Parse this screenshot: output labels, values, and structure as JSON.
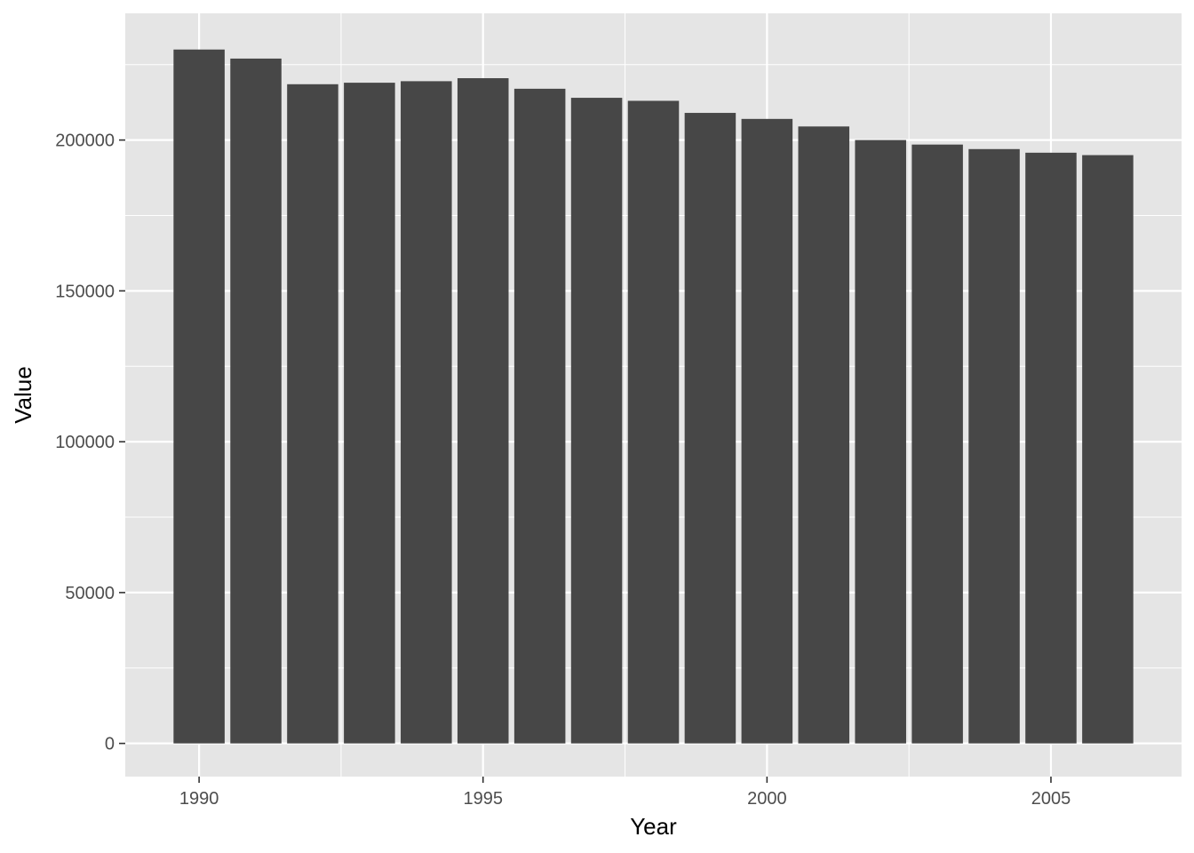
{
  "chart_data": {
    "type": "bar",
    "title": "",
    "xlabel": "Year",
    "ylabel": "Value",
    "x": [
      1990,
      1991,
      1992,
      1993,
      1994,
      1995,
      1996,
      1997,
      1998,
      1999,
      2000,
      2001,
      2002,
      2003,
      2004,
      2005,
      2006
    ],
    "values": [
      230000,
      227000,
      218500,
      219000,
      219500,
      220500,
      217000,
      214000,
      213000,
      209000,
      207000,
      204500,
      200000,
      198500,
      197000,
      195800,
      195000
    ],
    "xlim": [
      1988.7,
      2007.3
    ],
    "ylim": [
      -11000,
      242000
    ],
    "xticks": [
      1990,
      1995,
      2000,
      2005
    ],
    "xtick_labels": [
      "1990",
      "1995",
      "2000",
      "2005"
    ],
    "yticks": [
      0,
      50000,
      100000,
      150000,
      200000
    ],
    "ytick_labels": [
      "0",
      "50000",
      "100000",
      "150000",
      "200000"
    ],
    "grid": true,
    "legend": "none",
    "colors": {
      "bar": "#474747",
      "panel": "#e5e5e5",
      "grid": "#ffffff",
      "tick": "#333333"
    }
  }
}
